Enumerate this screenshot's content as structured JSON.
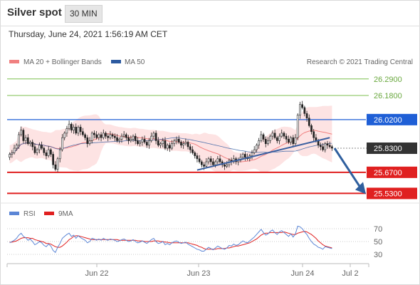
{
  "header": {
    "title": "Silver spot",
    "timeframe": "30 MIN",
    "timestamp": "Thursday, June 24, 2021 1:56:19 AM CET"
  },
  "copyright": "Research © 2021 Trading Central",
  "colors": {
    "up_candle": "#ffffff",
    "down_candle": "#222222",
    "ma20": "#f08080",
    "bollinger_fill": "#fde0e0",
    "ma50": "#2c5aa0",
    "resistance_green": "#7cbf4f",
    "pivot_blue": "#1f5fd6",
    "support_red": "#e02020",
    "current_price": "#333333",
    "trendline": "#3a5fa0",
    "arrow": "#2f5f9e",
    "rsi": "#5b86d6",
    "rsi_ma": "#e02020"
  },
  "chart_data": [
    {
      "type": "candlestick",
      "title": "Silver spot",
      "legend": [
        "MA 20 + Bollinger Bands",
        "MA 50"
      ],
      "x_tick_labels": [
        "Jun 22",
        "Jun 23",
        "Jun 24",
        "Jul 2"
      ],
      "ylim": [
        25.48,
        26.36
      ],
      "levels": [
        {
          "label": "26.2900",
          "value": 26.29,
          "kind": "resistance"
        },
        {
          "label": "26.1800",
          "value": 26.18,
          "kind": "resistance"
        },
        {
          "label": "26.0200",
          "value": 26.02,
          "kind": "pivot"
        },
        {
          "label": "25.8300",
          "value": 25.83,
          "kind": "current"
        },
        {
          "label": "25.6700",
          "value": 25.67,
          "kind": "support"
        },
        {
          "label": "25.5300",
          "value": 25.53,
          "kind": "support"
        }
      ],
      "close": [
        25.79,
        25.8,
        25.83,
        25.85,
        25.92,
        25.95,
        25.88,
        25.9,
        25.86,
        25.87,
        25.84,
        25.8,
        25.82,
        25.85,
        25.83,
        25.8,
        25.78,
        25.82,
        25.79,
        25.72,
        25.69,
        25.76,
        25.82,
        25.9,
        25.93,
        25.96,
        25.99,
        25.95,
        25.97,
        25.93,
        25.97,
        25.94,
        25.92,
        25.9,
        25.86,
        25.88,
        25.93,
        25.92,
        25.9,
        25.92,
        25.9,
        25.93,
        25.91,
        25.9,
        25.92,
        25.91,
        25.9,
        25.88,
        25.89,
        25.91,
        25.92,
        25.9,
        25.88,
        25.89,
        25.91,
        25.88,
        25.86,
        25.87,
        25.89,
        25.87,
        25.85,
        25.88,
        25.91,
        25.93,
        25.88,
        25.85,
        25.86,
        25.88,
        25.83,
        25.85,
        25.83,
        25.86,
        25.88,
        25.89,
        25.87,
        25.85,
        25.86,
        25.87,
        25.84,
        25.82,
        25.8,
        25.78,
        25.76,
        25.74,
        25.72,
        25.71,
        25.74,
        25.76,
        25.74,
        25.72,
        25.74,
        25.76,
        25.74,
        25.72,
        25.71,
        25.72,
        25.75,
        25.74,
        25.76,
        25.74,
        25.75,
        25.77,
        25.79,
        25.77,
        25.76,
        25.78,
        25.8,
        25.82,
        25.85,
        25.88,
        25.92,
        25.89,
        25.86,
        25.88,
        25.91,
        25.93,
        25.9,
        25.88,
        25.91,
        25.93,
        25.91,
        25.89,
        25.87,
        25.9,
        25.86,
        25.9,
        26.05,
        26.12,
        26.1,
        26.06,
        26.03,
        25.98,
        25.94,
        25.9,
        25.88,
        25.85,
        25.84,
        25.82,
        25.86,
        25.85,
        25.84,
        25.83
      ],
      "open": [
        25.77,
        25.79,
        25.8,
        25.83,
        25.85,
        25.92,
        25.95,
        25.88,
        25.9,
        25.86,
        25.87,
        25.84,
        25.8,
        25.82,
        25.85,
        25.83,
        25.8,
        25.78,
        25.82,
        25.79,
        25.72,
        25.69,
        25.76,
        25.82,
        25.9,
        25.93,
        25.96,
        25.99,
        25.95,
        25.97,
        25.93,
        25.97,
        25.94,
        25.92,
        25.9,
        25.86,
        25.88,
        25.93,
        25.92,
        25.9,
        25.92,
        25.9,
        25.93,
        25.91,
        25.9,
        25.92,
        25.91,
        25.9,
        25.88,
        25.89,
        25.91,
        25.92,
        25.9,
        25.88,
        25.89,
        25.91,
        25.88,
        25.86,
        25.87,
        25.89,
        25.87,
        25.85,
        25.88,
        25.91,
        25.93,
        25.88,
        25.85,
        25.86,
        25.88,
        25.83,
        25.85,
        25.83,
        25.86,
        25.88,
        25.89,
        25.87,
        25.85,
        25.86,
        25.87,
        25.84,
        25.82,
        25.8,
        25.78,
        25.76,
        25.74,
        25.72,
        25.71,
        25.74,
        25.76,
        25.74,
        25.72,
        25.74,
        25.76,
        25.74,
        25.72,
        25.71,
        25.72,
        25.75,
        25.74,
        25.76,
        25.74,
        25.75,
        25.77,
        25.79,
        25.77,
        25.76,
        25.78,
        25.8,
        25.82,
        25.85,
        25.88,
        25.92,
        25.89,
        25.86,
        25.88,
        25.91,
        25.93,
        25.9,
        25.88,
        25.91,
        25.93,
        25.91,
        25.89,
        25.87,
        25.9,
        25.86,
        25.9,
        26.05,
        26.12,
        26.1,
        26.06,
        26.03,
        25.98,
        25.94,
        25.9,
        25.88,
        25.85,
        25.84,
        25.82,
        25.86,
        25.85,
        25.84
      ],
      "rsi": {
        "legend": [
          "RSI",
          "9MA"
        ],
        "ylim": [
          20,
          80
        ],
        "tick_labels": [
          "70",
          "50",
          "30"
        ],
        "tick_values": [
          70,
          50,
          30
        ],
        "rsi_values": [
          48,
          50,
          52,
          55,
          60,
          63,
          58,
          56,
          52,
          54,
          50,
          45,
          47,
          50,
          48,
          44,
          42,
          46,
          43,
          36,
          33,
          41,
          47,
          55,
          58,
          61,
          63,
          58,
          60,
          55,
          59,
          56,
          54,
          52,
          48,
          50,
          55,
          54,
          52,
          54,
          52,
          55,
          53,
          52,
          54,
          53,
          52,
          50,
          51,
          53,
          54,
          52,
          50,
          51,
          53,
          50,
          48,
          49,
          51,
          49,
          47,
          50,
          53,
          55,
          50,
          47,
          48,
          50,
          45,
          47,
          45,
          48,
          50,
          51,
          49,
          47,
          48,
          49,
          46,
          44,
          42,
          40,
          38,
          37,
          35,
          35,
          38,
          41,
          39,
          37,
          40,
          43,
          41,
          39,
          38,
          40,
          44,
          43,
          46,
          44,
          45,
          48,
          51,
          49,
          48,
          51,
          54,
          57,
          61,
          65,
          69,
          64,
          60,
          62,
          66,
          68,
          64,
          61,
          65,
          67,
          64,
          61,
          58,
          62,
          57,
          62,
          74,
          73,
          70,
          65,
          61,
          55,
          50,
          46,
          44,
          41,
          40,
          38,
          42,
          41,
          40,
          39
        ],
        "ma_values": [
          49,
          49,
          50,
          51,
          53,
          55,
          56,
          56,
          56,
          55,
          55,
          53,
          52,
          51,
          50,
          49,
          47,
          47,
          46,
          44,
          42,
          41,
          41,
          43,
          46,
          49,
          53,
          55,
          58,
          59,
          59,
          58,
          57,
          56,
          55,
          54,
          53,
          53,
          53,
          53,
          53,
          53,
          53,
          53,
          53,
          53,
          53,
          53,
          52,
          52,
          52,
          52,
          52,
          52,
          52,
          52,
          51,
          51,
          51,
          50,
          50,
          50,
          50,
          51,
          51,
          51,
          50,
          50,
          49,
          49,
          48,
          48,
          48,
          48,
          48,
          48,
          48,
          48,
          48,
          47,
          46,
          45,
          44,
          42,
          41,
          39,
          38,
          38,
          38,
          38,
          38,
          39,
          39,
          39,
          39,
          40,
          40,
          41,
          42,
          43,
          43,
          44,
          45,
          46,
          47,
          48,
          50,
          52,
          54,
          57,
          60,
          62,
          63,
          63,
          64,
          64,
          64,
          64,
          64,
          64,
          65,
          64,
          63,
          62,
          61,
          61,
          63,
          64,
          65,
          66,
          65,
          63,
          61,
          58,
          55,
          51,
          48,
          45,
          43,
          42,
          41,
          40
        ]
      }
    }
  ]
}
